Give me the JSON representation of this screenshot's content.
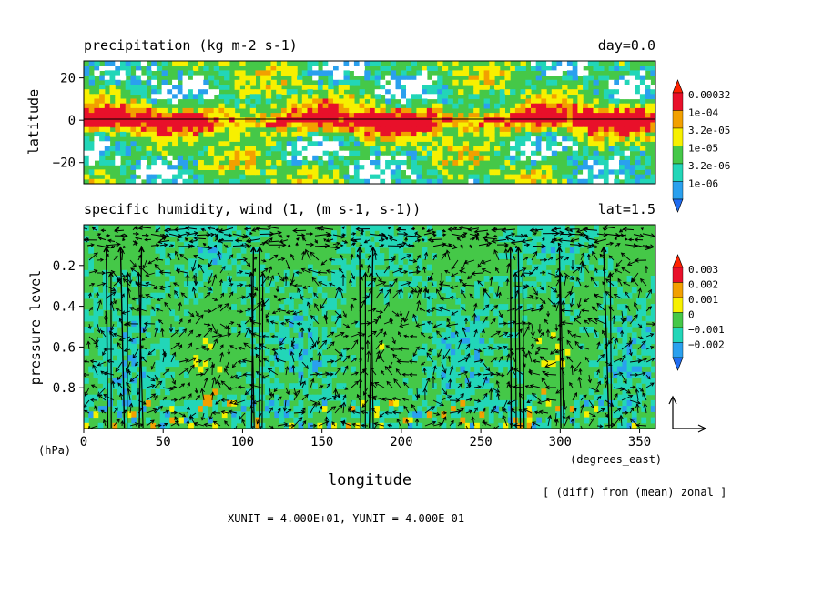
{
  "chart_data": [
    {
      "type": "heatmap",
      "title": "precipitation (kg m-2 s-1)",
      "tag": "day=0.0",
      "ylabel": "latitude",
      "xlim": [
        0,
        360
      ],
      "ylim": [
        -30,
        28
      ],
      "yticks": [
        "20",
        "0",
        "−20"
      ],
      "ytick_values": [
        20,
        0,
        -20
      ],
      "legend": {
        "labels": [
          "0.00032",
          "1e-04",
          "3.2e-05",
          "1e-05",
          "3.2e-06",
          "1e-06"
        ],
        "colors": [
          "#e8102a",
          "#f2a000",
          "#f7f000",
          "#45c848",
          "#22d6b8",
          "#2aa0ee"
        ],
        "extend_colors": [
          "#ff2200",
          "#1f6cf0"
        ]
      },
      "reference_line_lat": 0
    },
    {
      "type": "heatmap",
      "title": "specific humidity, wind (1, (m s-1, s-1))",
      "tag": "lat=1.5",
      "ylabel": "pressure level",
      "xlabel": "longitude",
      "xunit": "(degrees_east)",
      "yunit": "(hPa)",
      "xlim": [
        0,
        360
      ],
      "ylim": [
        1.0,
        0.0
      ],
      "xticks": [
        "0",
        "50",
        "100",
        "150",
        "200",
        "250",
        "300",
        "350"
      ],
      "xtick_values": [
        0,
        50,
        100,
        150,
        200,
        250,
        300,
        350
      ],
      "yticks": [
        "0.2",
        "0.4",
        "0.6",
        "0.8"
      ],
      "ytick_values": [
        0.2,
        0.4,
        0.6,
        0.8
      ],
      "legend": {
        "labels": [
          "0.003",
          "0.002",
          "0.001",
          "0",
          "−0.001",
          "−0.002"
        ],
        "colors": [
          "#e8102a",
          "#f2a000",
          "#f7f000",
          "#45c848",
          "#22d6b8",
          "#2aa0ee"
        ],
        "extend_colors": [
          "#ff2200",
          "#1f6cf0"
        ]
      },
      "updraft_longitudes": [
        15,
        25,
        35,
        105,
        110,
        175,
        180,
        270,
        275,
        300,
        330
      ]
    }
  ],
  "footer": {
    "diff_note": "[ (diff) from (mean) zonal ]",
    "units_line": "XUNIT = 4.000E+01, YUNIT = 4.000E-01"
  }
}
